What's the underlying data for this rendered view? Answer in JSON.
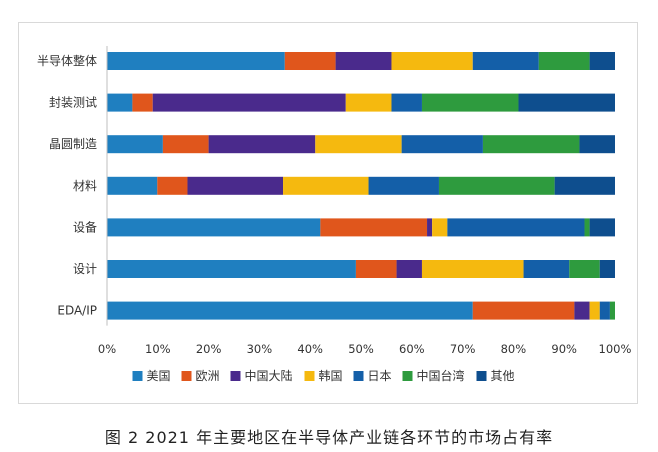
{
  "caption": "图 2  2021 年主要地区在半导体产业链各环节的市场占有率",
  "chart_data": {
    "type": "bar",
    "orientation": "horizontal",
    "stacked": "percent",
    "categories": [
      "半导体整体",
      "封装测试",
      "晶圆制造",
      "材料",
      "设备",
      "设计",
      "EDA/IP"
    ],
    "series": [
      {
        "name": "美国",
        "color": "#1F7FC0",
        "values": [
          35,
          5,
          11,
          10,
          42,
          49,
          72
        ]
      },
      {
        "name": "欧洲",
        "color": "#E0561C",
        "values": [
          10,
          4,
          9,
          6,
          21,
          8,
          20
        ]
      },
      {
        "name": "中国大陆",
        "color": "#4A2A8C",
        "values": [
          11,
          38,
          21,
          19,
          1,
          5,
          3
        ]
      },
      {
        "name": "韩国",
        "color": "#F5B90F",
        "values": [
          16,
          9,
          17,
          17,
          3,
          20,
          2
        ]
      },
      {
        "name": "日本",
        "color": "#145FA8",
        "values": [
          13,
          6,
          16,
          14,
          27,
          9,
          2
        ]
      },
      {
        "name": "中国台湾",
        "color": "#2E9B3E",
        "values": [
          10,
          19,
          19,
          23,
          1,
          6,
          1
        ]
      },
      {
        "name": "其他",
        "color": "#0E4E8E",
        "values": [
          5,
          19,
          7,
          12,
          5,
          3,
          0
        ]
      }
    ],
    "xlim": [
      0,
      100
    ],
    "xticks": [
      "0%",
      "10%",
      "20%",
      "30%",
      "40%",
      "50%",
      "60%",
      "70%",
      "80%",
      "90%",
      "100%"
    ],
    "grid": false,
    "legend": "bottom"
  }
}
